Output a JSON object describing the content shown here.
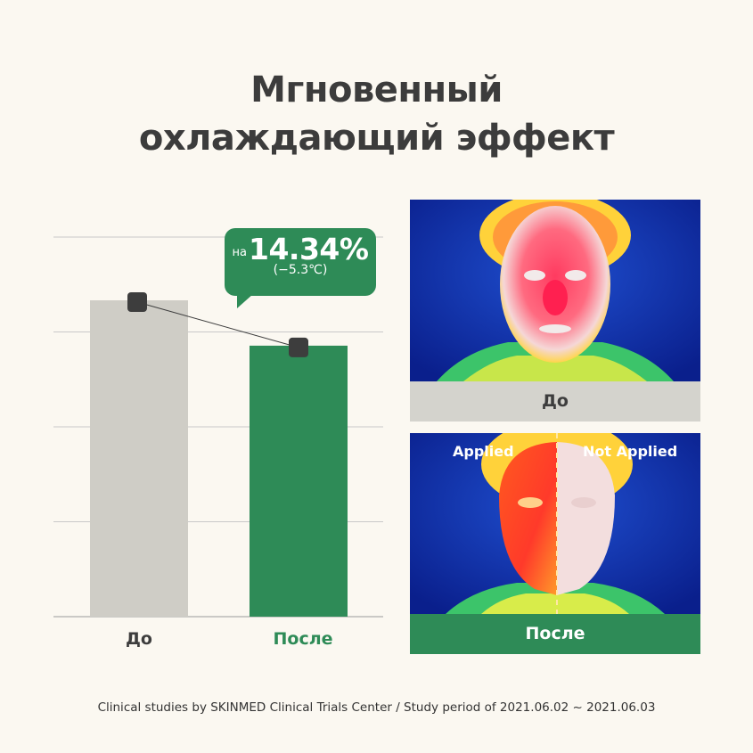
{
  "title": {
    "line1": "Мгновенный",
    "line2": "охлаждающий эффект"
  },
  "chart_data": {
    "type": "bar",
    "categories": [
      "До",
      "После"
    ],
    "values": [
      100,
      85.66
    ],
    "ylim": [
      0,
      120
    ],
    "grid": true,
    "annotation": {
      "prefix": "на",
      "value": "14.34%",
      "sub": "(−5.3℃)"
    }
  },
  "panels": {
    "before": {
      "label": "До"
    },
    "after": {
      "label": "После",
      "applied": "Applied",
      "not_applied": "Not Applied"
    }
  },
  "footnote": "Clinical studies by SKINMED Clinical Trials Center / Study period of 2021.06.02 ~ 2021.06.03",
  "colors": {
    "before_bar": "#cfcdc6",
    "after_bar": "#2e8b57",
    "marker": "#3d3d3d",
    "background": "#fbf8f1"
  }
}
